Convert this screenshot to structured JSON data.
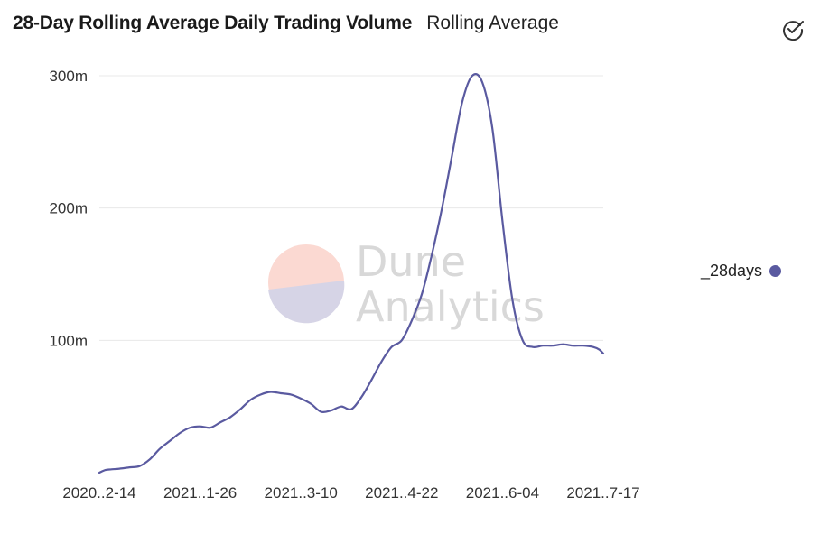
{
  "header": {
    "title": "28-Day Rolling Average Daily Trading Volume",
    "subtitle": "Rolling Average"
  },
  "icons": {
    "check": "check-circle-icon"
  },
  "watermark": {
    "line1": "Dune",
    "line2": "Analytics"
  },
  "colors": {
    "series": "#5a5aa0",
    "grid": "#e8e8e8",
    "wm_top": "#fbd9d2",
    "wm_bottom": "#d6d4e6"
  },
  "chart_data": {
    "type": "line",
    "title": "28-Day Rolling Average Daily Trading Volume",
    "xlabel": "",
    "ylabel": "",
    "ylim": [
      0,
      300
    ],
    "y_ticks": [
      100,
      200,
      300
    ],
    "y_tick_labels": [
      "100m",
      "200m",
      "300m"
    ],
    "x_ticks": [
      0,
      50,
      100,
      150,
      200,
      250
    ],
    "x_tick_labels": [
      "2020..2-14",
      "2021..1-26",
      "2021..3-10",
      "2021..4-22",
      "2021..6-04",
      "2021..7-17"
    ],
    "grid": true,
    "legend_position": "right",
    "series": [
      {
        "name": "_28days",
        "color": "#5a5aa0",
        "x": [
          0,
          3,
          6,
          10,
          15,
          20,
          25,
          30,
          35,
          40,
          45,
          50,
          55,
          60,
          65,
          70,
          75,
          80,
          85,
          90,
          95,
          100,
          105,
          110,
          115,
          120,
          125,
          130,
          135,
          140,
          145,
          150,
          155,
          160,
          165,
          170,
          175,
          180,
          185,
          190,
          195,
          200,
          205,
          210,
          215,
          220,
          225,
          230,
          235,
          240,
          245,
          248,
          250
        ],
        "values": [
          0,
          2,
          2.5,
          3,
          4,
          5,
          10,
          18,
          24,
          30,
          34,
          35,
          34,
          38,
          42,
          48,
          55,
          59,
          61,
          60,
          59,
          56,
          52,
          46,
          47,
          50,
          48,
          57,
          70,
          84,
          95,
          100,
          115,
          135,
          165,
          200,
          240,
          280,
          300,
          295,
          260,
          190,
          130,
          100,
          95,
          96,
          96,
          97,
          96,
          96,
          95,
          93,
          90
        ]
      }
    ]
  },
  "legend": {
    "label": "_28days"
  }
}
